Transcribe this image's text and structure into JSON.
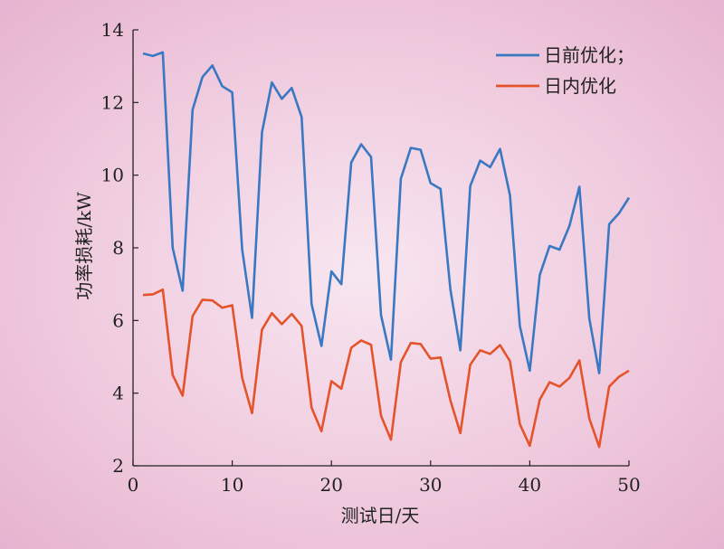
{
  "chart_data": {
    "type": "line",
    "title": "",
    "xlabel": "测试日/天",
    "ylabel": "功率损耗/kW",
    "xlim": [
      0,
      50
    ],
    "ylim": [
      2,
      14
    ],
    "xticks": [
      0,
      10,
      20,
      30,
      40,
      50
    ],
    "yticks": [
      2,
      4,
      6,
      8,
      10,
      12,
      14
    ],
    "x_tick_labels": [
      "0",
      "10",
      "20",
      "30",
      "40",
      "50"
    ],
    "y_tick_labels": [
      "2",
      "4",
      "6",
      "8",
      "10",
      "12",
      "14"
    ],
    "grid": false,
    "legend_position": "top-right",
    "x": [
      1,
      2,
      3,
      4,
      5,
      6,
      7,
      8,
      9,
      10,
      11,
      12,
      13,
      14,
      15,
      16,
      17,
      18,
      19,
      20,
      21,
      22,
      23,
      24,
      25,
      26,
      27,
      28,
      29,
      30,
      31,
      32,
      33,
      34,
      35,
      36,
      37,
      38,
      39,
      40,
      41,
      42,
      43,
      44,
      45,
      46,
      47,
      48,
      49,
      50
    ],
    "series": [
      {
        "name": "日前优化；",
        "color": "#3a78c2",
        "values": [
          13.35,
          13.28,
          13.38,
          8.0,
          6.82,
          11.8,
          12.7,
          13.02,
          12.45,
          12.28,
          7.95,
          6.07,
          11.18,
          12.55,
          12.1,
          12.4,
          11.6,
          6.45,
          5.3,
          7.35,
          7.0,
          10.35,
          10.85,
          10.5,
          6.15,
          4.92,
          9.9,
          10.75,
          10.7,
          9.78,
          9.62,
          6.85,
          5.18,
          9.7,
          10.4,
          10.22,
          10.72,
          9.45,
          5.85,
          4.62,
          7.25,
          8.05,
          7.95,
          8.6,
          9.68,
          6.05,
          4.55,
          8.65,
          8.95,
          9.38
        ]
      },
      {
        "name": "日内优化",
        "color": "#e4532a",
        "values": [
          6.7,
          6.72,
          6.85,
          4.5,
          3.93,
          6.12,
          6.57,
          6.55,
          6.35,
          6.42,
          4.42,
          3.45,
          5.75,
          6.2,
          5.9,
          6.18,
          5.85,
          3.6,
          2.95,
          4.33,
          4.12,
          5.25,
          5.45,
          5.33,
          3.38,
          2.72,
          4.85,
          5.38,
          5.35,
          4.95,
          4.98,
          3.8,
          2.9,
          4.78,
          5.18,
          5.08,
          5.32,
          4.88,
          3.15,
          2.55,
          3.82,
          4.3,
          4.18,
          4.42,
          4.9,
          3.3,
          2.52,
          4.18,
          4.45,
          4.62
        ]
      }
    ]
  }
}
